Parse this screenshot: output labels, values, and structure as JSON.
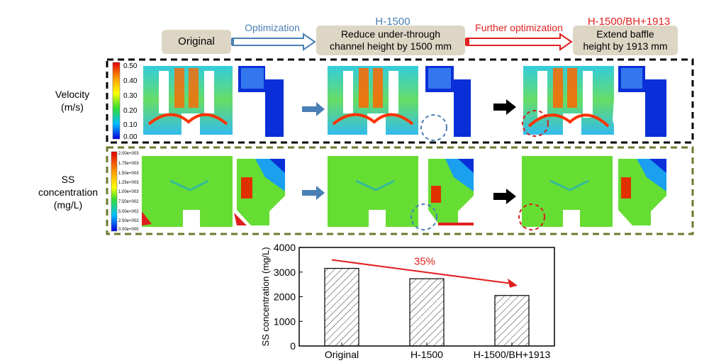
{
  "flow": {
    "original": "Original",
    "opt1_label": "Optimization",
    "h1500_title": "H-1500",
    "h1500_box_line1": "Reduce under-through",
    "h1500_box_line2": "channel height by 1500 mm",
    "opt2_label": "Further optimization",
    "bh_title": "H-1500/BH+1913",
    "bh_box_line1": "Extend baffle",
    "bh_box_line2": "height by 1913 mm"
  },
  "rows": {
    "velocity_line1": "Velocity",
    "velocity_line2": "(m/s)",
    "ss_line1": "SS",
    "ss_line2": "concentration",
    "ss_line3": "(mg/L)"
  },
  "velocity_scale": [
    "0.50",
    "0.40",
    "0.30",
    "0.20",
    "0.10",
    "0.00"
  ],
  "ss_scale": [
    "2.00e+003",
    "1.75e+003",
    "1.50e+003",
    "1.25e+003",
    "1.00e+003",
    "7.50e+002",
    "5.00e+002",
    "2.50e+002",
    "0.00e+000"
  ],
  "colors": {
    "blue_accent": "#4a7fb5",
    "red_accent": "#e02020",
    "box_fill": "#ddd6c4",
    "velocity_border": "#000000",
    "ss_border": "#6b7a2e"
  },
  "chart_data": {
    "type": "bar",
    "categories": [
      "Original",
      "H-1500",
      "H-1500/BH+1913"
    ],
    "values": [
      3150,
      2730,
      2050
    ],
    "ylabel": "SS concentration (mg/L)",
    "ylim": [
      0,
      4000
    ],
    "yticks": [
      "0",
      "1000",
      "2000",
      "3000",
      "4000"
    ],
    "annotation": "35%"
  }
}
